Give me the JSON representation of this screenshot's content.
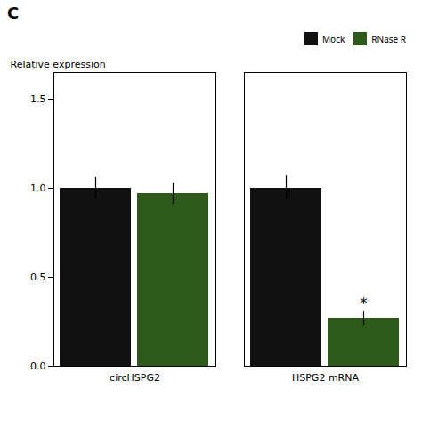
{
  "chart_data": {
    "type": "bar",
    "title": "C",
    "ylabel": "Relative expression",
    "categories": [
      "circHSPG2",
      "HSPG2 mRNA"
    ],
    "series": [
      {
        "name": "Mock",
        "color": "#111111",
        "values": [
          1.0,
          1.0
        ],
        "errors": [
          0.06,
          0.07
        ]
      },
      {
        "name": "RNase R",
        "color": "#2d5a1b",
        "values": [
          0.97,
          0.27
        ],
        "errors": [
          0.06,
          0.04
        ]
      }
    ],
    "annotations": [
      {
        "text": "*",
        "category": "HSPG2 mRNA",
        "series": "RNase R"
      }
    ],
    "ylim": [
      0,
      1.65
    ],
    "yticks": [
      {
        "value": 0.0,
        "label": "0.0"
      },
      {
        "value": 0.5,
        "label": "0.5"
      },
      {
        "value": 1.0,
        "label": "1.0"
      },
      {
        "value": 1.5,
        "label": "1.5"
      }
    ],
    "grid": false,
    "legend": "upper right"
  }
}
